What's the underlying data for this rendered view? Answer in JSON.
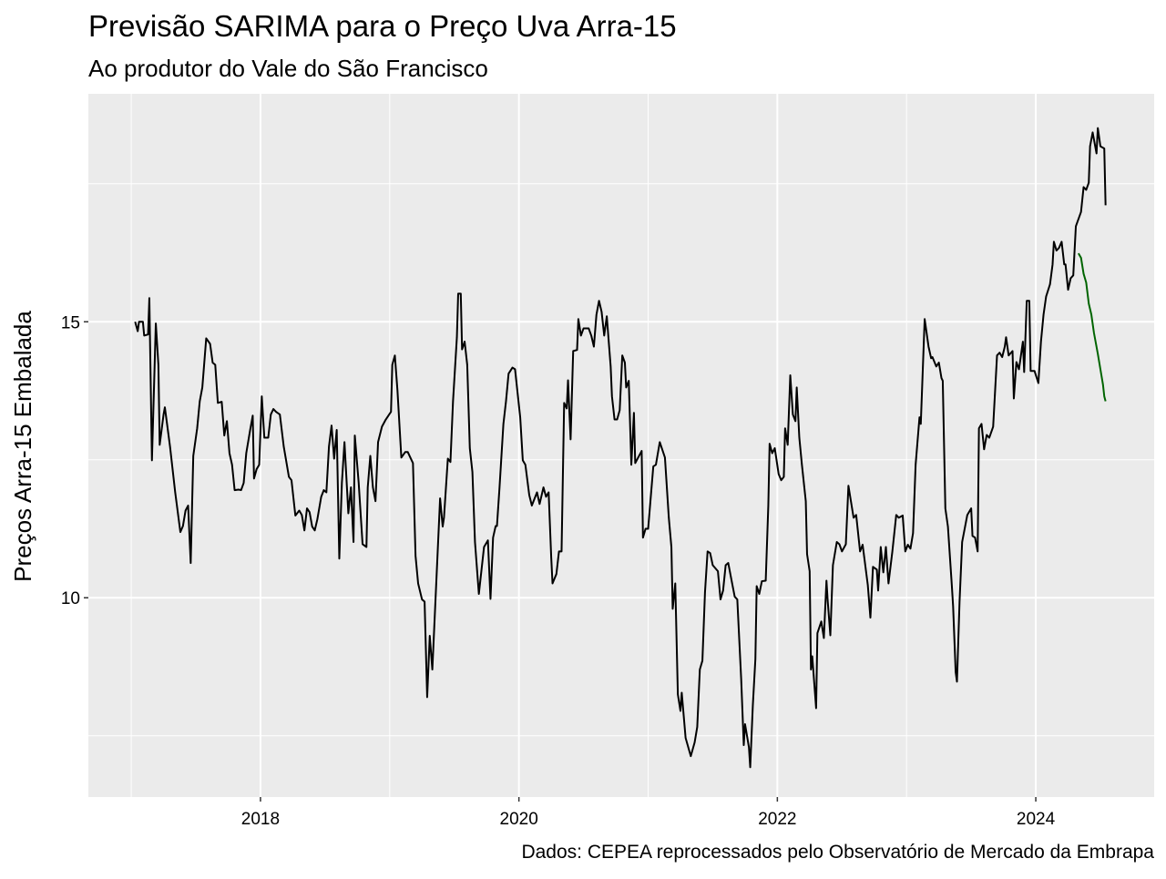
{
  "chart_data": {
    "type": "line",
    "title": "Previsão SARIMA para o Preço Uva Arra-15",
    "subtitle": "Ao produtor do Vale do São Francisco",
    "ylabel": "Preços Arra-15 Embalada",
    "caption": "Dados: CEPEA reprocessados pelo Observatório de Mercado da Embrapa",
    "xlim": [
      2016.668,
      2024.916
    ],
    "xticks": [
      2018,
      2020,
      2022,
      2024
    ],
    "xminorticks": [
      2017,
      2019,
      2021,
      2023
    ],
    "ylim": [
      6.39,
      19.13
    ],
    "yticks": [
      10,
      15
    ],
    "yminorticks": [
      7.5,
      12.5,
      17.5
    ],
    "grid": true,
    "series": [
      {
        "color": "#000000",
        "x": [
          2017.03,
          2017.05,
          2017.06,
          2017.09,
          2017.1,
          2017.13,
          2017.14,
          2017.16,
          2017.19,
          2017.21,
          2017.22,
          2017.25,
          2017.26,
          2017.3,
          2017.34,
          2017.38,
          2017.4,
          2017.42,
          2017.44,
          2017.46,
          2017.48,
          2017.51,
          2017.53,
          2017.55,
          2017.58,
          2017.61,
          2017.63,
          2017.65,
          2017.67,
          2017.7,
          2017.72,
          2017.74,
          2017.76,
          2017.78,
          2017.8,
          2017.83,
          2017.85,
          2017.87,
          2017.89,
          2017.92,
          2017.94,
          2017.95,
          2017.97,
          2017.99,
          2018.01,
          2018.03,
          2018.06,
          2018.08,
          2018.1,
          2018.12,
          2018.15,
          2018.18,
          2018.22,
          2018.24,
          2018.27,
          2018.3,
          2018.32,
          2018.34,
          2018.36,
          2018.38,
          2018.4,
          2018.42,
          2018.44,
          2018.47,
          2018.49,
          2018.51,
          2018.53,
          2018.55,
          2018.57,
          2018.59,
          2018.61,
          2018.63,
          2018.65,
          2018.68,
          2018.7,
          2018.72,
          2018.73,
          2018.76,
          2018.79,
          2018.82,
          2018.83,
          2018.85,
          2018.87,
          2018.89,
          2018.91,
          2018.94,
          2018.97,
          2019.01,
          2019.02,
          2019.04,
          2019.06,
          2019.09,
          2019.12,
          2019.14,
          2019.18,
          2019.2,
          2019.22,
          2019.25,
          2019.27,
          2019.29,
          2019.31,
          2019.33,
          2019.39,
          2019.41,
          2019.42,
          2019.45,
          2019.47,
          2019.49,
          2019.52,
          2019.53,
          2019.55,
          2019.56,
          2019.58,
          2019.6,
          2019.62,
          2019.64,
          2019.66,
          2019.69,
          2019.73,
          2019.76,
          2019.78,
          2019.8,
          2019.82,
          2019.83,
          2019.85,
          2019.88,
          2019.9,
          2019.92,
          2019.95,
          2019.97,
          2020.01,
          2020.03,
          2020.05,
          2020.08,
          2020.1,
          2020.14,
          2020.16,
          2020.19,
          2020.21,
          2020.23,
          2020.25,
          2020.26,
          2020.29,
          2020.31,
          2020.33,
          2020.35,
          2020.37,
          2020.38,
          2020.4,
          2020.42,
          2020.45,
          2020.46,
          2020.48,
          2020.5,
          2020.54,
          2020.56,
          2020.58,
          2020.6,
          2020.62,
          2020.64,
          2020.66,
          2020.68,
          2020.71,
          2020.72,
          2020.74,
          2020.76,
          2020.78,
          2020.8,
          2020.82,
          2020.83,
          2020.85,
          2020.87,
          2020.89,
          2020.9,
          2020.95,
          2020.96,
          2020.98,
          2021.0,
          2021.04,
          2021.06,
          2021.09,
          2021.13,
          2021.16,
          2021.18,
          2021.19,
          2021.21,
          2021.23,
          2021.25,
          2021.26,
          2021.29,
          2021.33,
          2021.36,
          2021.38,
          2021.4,
          2021.42,
          2021.44,
          2021.46,
          2021.48,
          2021.5,
          2021.54,
          2021.56,
          2021.58,
          2021.6,
          2021.62,
          2021.65,
          2021.67,
          2021.69,
          2021.72,
          2021.74,
          2021.75,
          2021.78,
          2021.79,
          2021.81,
          2021.83,
          2021.84,
          2021.86,
          2021.88,
          2021.91,
          2021.93,
          2021.94,
          2021.96,
          2021.98,
          2022.01,
          2022.03,
          2022.05,
          2022.06,
          2022.08,
          2022.1,
          2022.12,
          2022.14,
          2022.15,
          2022.17,
          2022.19,
          2022.22,
          2022.23,
          2022.25,
          2022.26,
          2022.27,
          2022.3,
          2022.31,
          2022.34,
          2022.36,
          2022.38,
          2022.39,
          2022.41,
          2022.43,
          2022.46,
          2022.48,
          2022.5,
          2022.53,
          2022.55,
          2022.59,
          2022.61,
          2022.64,
          2022.66,
          2022.7,
          2022.72,
          2022.74,
          2022.77,
          2022.78,
          2022.8,
          2022.82,
          2022.84,
          2022.86,
          2022.89,
          2022.92,
          2022.94,
          2022.97,
          2022.99,
          2023.01,
          2023.03,
          2023.05,
          2023.07,
          2023.1,
          2023.11,
          2023.14,
          2023.17,
          2023.19,
          2023.2,
          2023.23,
          2023.25,
          2023.27,
          2023.28,
          2023.3,
          2023.32,
          2023.35,
          2023.36,
          2023.38,
          2023.39,
          2023.41,
          2023.43,
          2023.47,
          2023.5,
          2023.51,
          2023.53,
          2023.55,
          2023.56,
          2023.58,
          2023.6,
          2023.62,
          2023.64,
          2023.67,
          2023.7,
          2023.72,
          2023.74,
          2023.76,
          2023.77,
          2023.79,
          2023.82,
          2023.83,
          2023.85,
          2023.87,
          2023.9,
          2023.91,
          2023.93,
          2023.95,
          2023.96,
          2023.99,
          2024.02,
          2024.04,
          2024.06,
          2024.08,
          2024.11,
          2024.13,
          2024.14,
          2024.16,
          2024.18,
          2024.2,
          2024.22,
          2024.23,
          2024.25,
          2024.27,
          2024.29,
          2024.31,
          2024.33,
          2024.35,
          2024.37,
          2024.39,
          2024.41,
          2024.42,
          2024.44,
          2024.47,
          2024.48,
          2024.5,
          2024.53,
          2024.54
        ],
        "values": [
          15.0,
          14.83,
          15.0,
          15.0,
          14.75,
          14.77,
          15.43,
          12.49,
          14.97,
          14.22,
          12.77,
          13.32,
          13.45,
          12.74,
          11.91,
          11.19,
          11.3,
          11.58,
          11.67,
          10.63,
          12.57,
          13.07,
          13.56,
          13.81,
          14.7,
          14.6,
          14.26,
          14.22,
          13.53,
          13.55,
          12.94,
          13.2,
          12.62,
          12.41,
          11.95,
          11.96,
          11.95,
          12.08,
          12.62,
          13.04,
          13.3,
          12.16,
          12.33,
          12.41,
          13.65,
          12.9,
          12.9,
          13.32,
          13.42,
          13.37,
          13.32,
          12.74,
          12.19,
          12.13,
          11.49,
          11.58,
          11.5,
          11.22,
          11.62,
          11.55,
          11.29,
          11.22,
          11.42,
          11.83,
          11.95,
          11.91,
          12.74,
          13.12,
          12.52,
          13.04,
          10.71,
          12.08,
          12.82,
          11.53,
          12.0,
          11.01,
          12.94,
          12.08,
          10.97,
          10.92,
          12.0,
          12.57,
          12.0,
          11.75,
          12.82,
          13.1,
          13.23,
          13.37,
          14.22,
          14.39,
          13.76,
          12.54,
          12.64,
          12.64,
          12.44,
          10.76,
          10.26,
          9.97,
          9.93,
          8.2,
          9.31,
          8.7,
          11.8,
          11.29,
          11.45,
          12.52,
          12.46,
          13.56,
          14.72,
          15.51,
          15.51,
          14.5,
          14.64,
          14.22,
          12.71,
          12.28,
          11.01,
          10.07,
          10.92,
          11.04,
          9.98,
          11.09,
          11.3,
          11.3,
          12.0,
          13.15,
          13.56,
          14.06,
          14.17,
          14.14,
          13.27,
          12.49,
          12.41,
          11.86,
          11.67,
          11.91,
          11.7,
          12.0,
          11.83,
          11.91,
          10.73,
          10.26,
          10.43,
          10.84,
          10.84,
          13.53,
          13.43,
          13.94,
          12.87,
          14.47,
          14.49,
          15.05,
          14.75,
          14.88,
          14.88,
          14.75,
          14.55,
          15.13,
          15.38,
          15.18,
          14.75,
          15.1,
          14.19,
          13.65,
          13.23,
          13.23,
          13.4,
          14.39,
          14.26,
          13.81,
          13.93,
          12.41,
          13.35,
          12.44,
          12.66,
          11.09,
          11.25,
          11.25,
          12.38,
          12.41,
          12.82,
          12.54,
          11.45,
          10.92,
          9.8,
          10.26,
          8.25,
          7.95,
          8.28,
          7.46,
          7.13,
          7.38,
          7.66,
          8.7,
          8.86,
          10.1,
          10.84,
          10.81,
          10.59,
          10.48,
          9.97,
          10.13,
          10.59,
          10.63,
          10.26,
          10.02,
          9.97,
          8.53,
          7.33,
          7.71,
          7.29,
          6.93,
          8.04,
          8.89,
          10.21,
          10.07,
          10.3,
          10.31,
          11.67,
          12.79,
          12.62,
          12.71,
          12.24,
          12.13,
          12.19,
          13.07,
          12.77,
          14.03,
          13.32,
          13.2,
          13.81,
          12.9,
          12.41,
          11.75,
          10.79,
          10.48,
          8.7,
          8.94,
          8.0,
          9.36,
          9.57,
          9.27,
          10.31,
          9.93,
          9.32,
          10.59,
          11.01,
          10.97,
          10.84,
          10.97,
          12.03,
          11.45,
          11.5,
          10.84,
          10.96,
          10.23,
          9.64,
          10.56,
          10.51,
          10.13,
          10.92,
          10.46,
          10.92,
          10.26,
          10.84,
          11.5,
          11.45,
          11.49,
          10.84,
          10.96,
          10.89,
          11.17,
          12.41,
          13.27,
          13.15,
          15.05,
          14.55,
          14.34,
          14.36,
          14.19,
          14.26,
          13.98,
          13.93,
          11.62,
          11.29,
          10.23,
          9.85,
          8.65,
          8.48,
          9.93,
          11.01,
          11.5,
          11.62,
          11.12,
          11.09,
          10.84,
          13.07,
          13.15,
          12.69,
          12.95,
          12.9,
          13.1,
          14.39,
          14.44,
          14.36,
          14.55,
          14.72,
          14.39,
          14.47,
          13.61,
          14.27,
          14.14,
          14.64,
          14.09,
          15.38,
          15.38,
          14.11,
          14.11,
          13.89,
          14.64,
          15.13,
          15.46,
          15.68,
          16.04,
          16.45,
          16.29,
          16.34,
          16.45,
          16.04,
          16.04,
          15.58,
          15.79,
          15.84,
          16.73,
          16.86,
          16.99,
          17.44,
          17.39,
          17.52,
          18.18,
          18.43,
          18.05,
          18.51,
          18.18,
          18.14,
          17.11
        ]
      },
      {
        "color": "#006400",
        "x": [
          2024.33,
          2024.35,
          2024.37,
          2024.39,
          2024.41,
          2024.43,
          2024.45,
          2024.48,
          2024.5,
          2024.52,
          2024.53,
          2024.54
        ],
        "values": [
          16.24,
          16.16,
          15.87,
          15.71,
          15.33,
          15.13,
          14.8,
          14.42,
          14.14,
          13.86,
          13.65,
          13.56
        ]
      }
    ]
  }
}
